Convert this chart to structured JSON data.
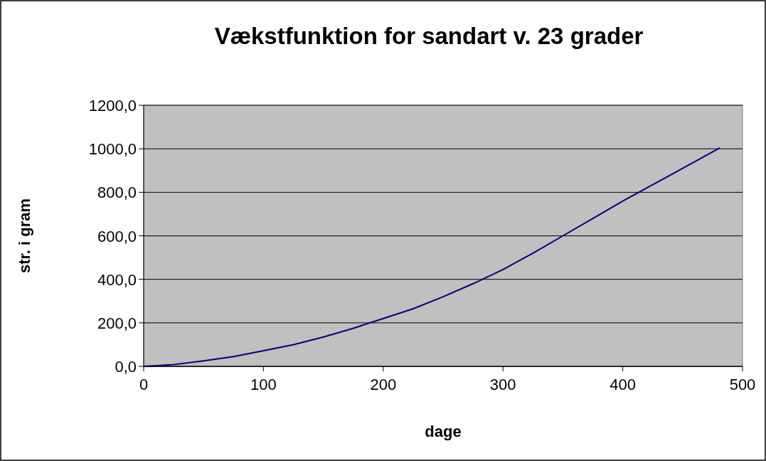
{
  "chart_data": {
    "type": "line",
    "title": "Vækstfunktion for sandart v. 23 grader",
    "xlabel": "dage",
    "ylabel": "str. i gram",
    "x": [
      0,
      25,
      50,
      75,
      100,
      125,
      150,
      175,
      200,
      225,
      250,
      275,
      300,
      325,
      350,
      375,
      400,
      425,
      450,
      481
    ],
    "series": [
      {
        "color": "#000080",
        "values": [
          0,
          8,
          25,
          45,
          72,
          100,
          135,
          175,
          220,
          265,
          320,
          380,
          445,
          520,
          600,
          680,
          760,
          835,
          910,
          1004
        ]
      }
    ],
    "xlim": [
      0,
      500
    ],
    "xticks": [
      0,
      100,
      200,
      300,
      400,
      500
    ],
    "ylim": [
      0,
      1200
    ],
    "yticks": [
      {
        "value": 0,
        "label": "0,0"
      },
      {
        "value": 200,
        "label": "200,0"
      },
      {
        "value": 400,
        "label": "400,0"
      },
      {
        "value": 600,
        "label": "600,0"
      },
      {
        "value": 800,
        "label": "800,0"
      },
      {
        "value": 1000,
        "label": "1000,0"
      },
      {
        "value": 1200,
        "label": "1200,0"
      }
    ],
    "grid": "y",
    "marker": "none",
    "line_style": "solid"
  }
}
